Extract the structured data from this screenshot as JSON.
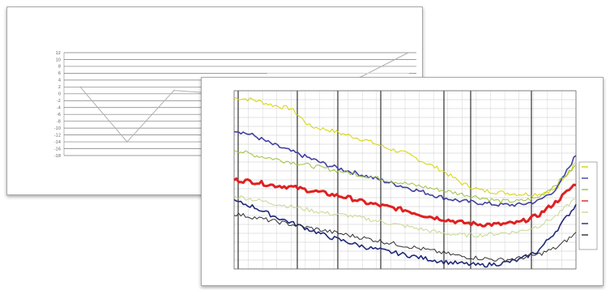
{
  "back_window": {
    "title": "",
    "chart_title": ""
  },
  "front_window": {
    "title": ""
  },
  "chart_data": [
    {
      "type": "line",
      "title": "",
      "xlabel": "",
      "ylabel": "",
      "yticks": [
        12,
        10,
        8,
        6,
        4,
        2,
        0,
        -2,
        -4,
        -6,
        -8,
        -10,
        -12,
        -14,
        -16,
        -18
      ],
      "ylim": [
        -18,
        12
      ],
      "x": [
        0,
        1,
        2,
        3,
        4,
        5,
        6,
        7
      ],
      "series": [
        {
          "name": "",
          "values": [
            2,
            -14,
            1,
            0,
            0,
            1,
            5,
            12
          ],
          "color": "#b0b0b0"
        },
        {
          "name": "",
          "values": [
            null,
            null,
            null,
            null,
            6,
            6,
            6,
            6
          ],
          "color": "#d8d8d8"
        }
      ],
      "grid": true,
      "legend": "none"
    },
    {
      "type": "line",
      "title": "",
      "xlabel": "",
      "ylabel": "",
      "ylim": [
        0,
        100
      ],
      "x": [
        0,
        1,
        2,
        3,
        4,
        5,
        6,
        7,
        8,
        9,
        10,
        11,
        12,
        13,
        14,
        15,
        16,
        17,
        18
      ],
      "series": [
        {
          "name": "",
          "color": "#d4d400",
          "values": [
            96,
            95,
            92,
            90,
            80,
            78,
            75,
            72,
            68,
            65,
            60,
            55,
            48,
            44,
            43,
            42,
            42,
            45,
            60
          ]
        },
        {
          "name": "",
          "color": "#4040a0",
          "values": [
            78,
            75,
            70,
            66,
            62,
            58,
            55,
            52,
            49,
            46,
            43,
            40,
            38,
            37,
            36,
            36,
            38,
            45,
            64
          ]
        },
        {
          "name": "",
          "color": "#9ec040",
          "values": [
            67,
            64,
            62,
            60,
            58,
            56,
            54,
            52,
            50,
            48,
            46,
            44,
            42,
            40,
            38,
            38,
            40,
            48,
            58
          ]
        },
        {
          "name": "",
          "color": "#e02020",
          "values": [
            50,
            49,
            47,
            46,
            44,
            42,
            40,
            37,
            35,
            33,
            30,
            28,
            26,
            25,
            25,
            26,
            30,
            38,
            48
          ]
        },
        {
          "name": "",
          "color": "#c8d890",
          "values": [
            41,
            39,
            37,
            35,
            33,
            31,
            30,
            28,
            26,
            24,
            22,
            20,
            19,
            19,
            20,
            21,
            24,
            30,
            40
          ]
        },
        {
          "name": "",
          "color": "#202878",
          "values": [
            38,
            35,
            30,
            26,
            22,
            18,
            15,
            12,
            10,
            8,
            6,
            4,
            3,
            2,
            3,
            5,
            10,
            22,
            36
          ]
        },
        {
          "name": "",
          "color": "#303030",
          "values": [
            31,
            29,
            27,
            25,
            23,
            21,
            19,
            17,
            15,
            13,
            11,
            9,
            7,
            6,
            5,
            6,
            8,
            12,
            20
          ]
        }
      ],
      "grid": true,
      "legend": "right"
    }
  ]
}
